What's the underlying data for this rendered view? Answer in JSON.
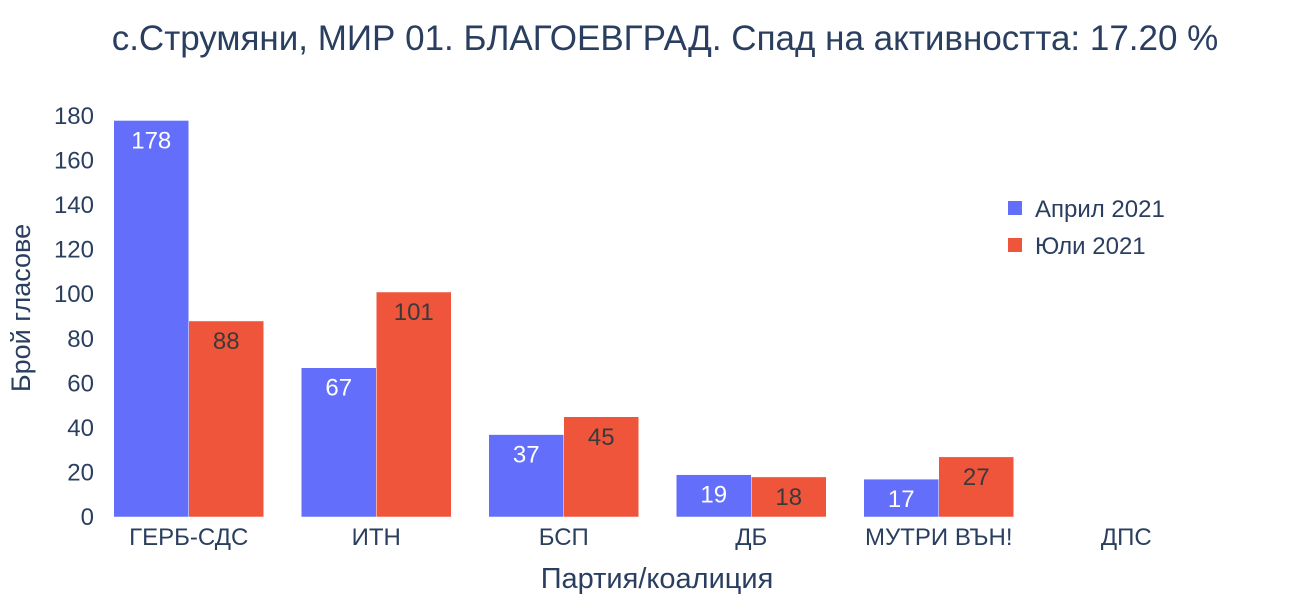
{
  "chart_data": {
    "type": "bar",
    "title": "с.Струмяни, МИР 01. БЛАГОЕВГРАД. Спад на активността: 17.20 %",
    "xlabel": "Партия/коалиция",
    "ylabel": "Брой гласове",
    "categories": [
      "ГЕРБ-СДС",
      "ИТН",
      "БСП",
      "ДБ",
      "МУТРИ ВЪН!",
      "ДПС"
    ],
    "series": [
      {
        "name": "Април 2021",
        "color": "#636efa",
        "values": [
          178,
          67,
          37,
          19,
          17,
          0
        ]
      },
      {
        "name": "Юли 2021",
        "color": "#ef553b",
        "values": [
          88,
          101,
          45,
          18,
          27,
          0
        ]
      }
    ],
    "ylim": [
      0,
      180
    ],
    "yticks": [
      0,
      20,
      40,
      60,
      80,
      100,
      120,
      140,
      160,
      180
    ],
    "grid": false,
    "legend_position": "top-right",
    "text_color": "#2a3f5f"
  }
}
